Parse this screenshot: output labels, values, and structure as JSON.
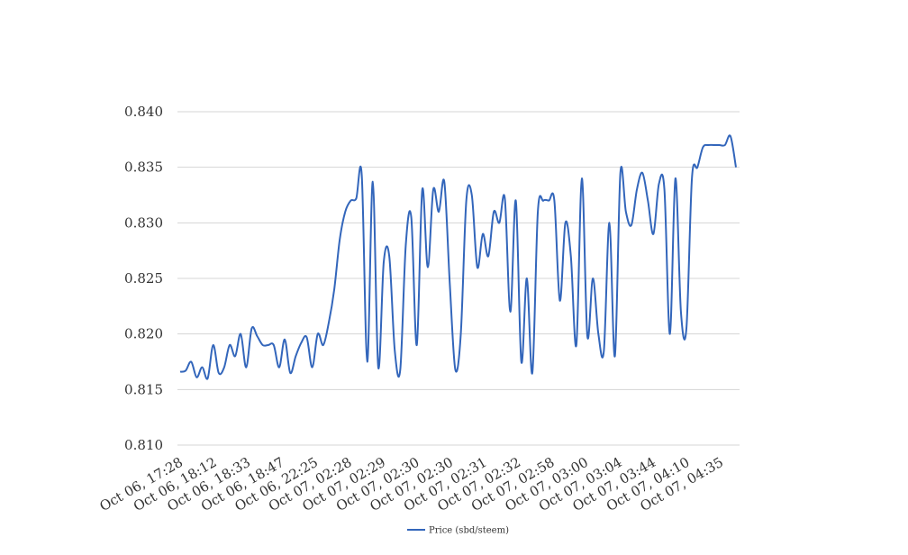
{
  "chart_data": {
    "type": "line",
    "title": "",
    "xlabel": "",
    "ylabel": "",
    "ylim": [
      0.81,
      0.84
    ],
    "yticks": [
      "0.810",
      "0.815",
      "0.820",
      "0.825",
      "0.830",
      "0.835",
      "0.840"
    ],
    "x_tick_labels": [
      "Oct 06, 17:28",
      "Oct 06, 18:12",
      "Oct 06, 18:33",
      "Oct 06, 18:47",
      "Oct 06, 22:25",
      "Oct 07, 02:28",
      "Oct 07, 02:29",
      "Oct 07, 02:30",
      "Oct 07, 02:30",
      "Oct 07, 02:31",
      "Oct 07, 02:32",
      "Oct 07, 02:58",
      "Oct 07, 03:00",
      "Oct 07, 03:04",
      "Oct 07, 03:44",
      "Oct 07, 04:10",
      "Oct 07, 04:35"
    ],
    "grid": true,
    "legend_position": "bottom",
    "series": [
      {
        "name": "Price (sbd/steem)",
        "color": "#3366bb",
        "values": [
          0.8166,
          0.8167,
          0.8175,
          0.8161,
          0.817,
          0.816,
          0.819,
          0.8165,
          0.817,
          0.819,
          0.818,
          0.82,
          0.817,
          0.8205,
          0.8198,
          0.819,
          0.819,
          0.819,
          0.817,
          0.8195,
          0.8165,
          0.818,
          0.8192,
          0.8197,
          0.817,
          0.82,
          0.819,
          0.821,
          0.824,
          0.8285,
          0.831,
          0.832,
          0.8322,
          0.8343,
          0.8175,
          0.8337,
          0.817,
          0.8265,
          0.827,
          0.8185,
          0.8168,
          0.828,
          0.8305,
          0.819,
          0.833,
          0.826,
          0.833,
          0.831,
          0.8337,
          0.8245,
          0.8168,
          0.82,
          0.832,
          0.8325,
          0.826,
          0.829,
          0.827,
          0.831,
          0.83,
          0.8322,
          0.822,
          0.832,
          0.8175,
          0.825,
          0.8165,
          0.831,
          0.832,
          0.832,
          0.832,
          0.823,
          0.83,
          0.827,
          0.819,
          0.834,
          0.8198,
          0.825,
          0.82,
          0.8185,
          0.83,
          0.818,
          0.8345,
          0.831,
          0.8298,
          0.833,
          0.8345,
          0.832,
          0.829,
          0.8335,
          0.833,
          0.82,
          0.834,
          0.822,
          0.8205,
          0.834,
          0.835,
          0.8368,
          0.837,
          0.837,
          0.837,
          0.837,
          0.8378,
          0.835
        ]
      }
    ]
  }
}
